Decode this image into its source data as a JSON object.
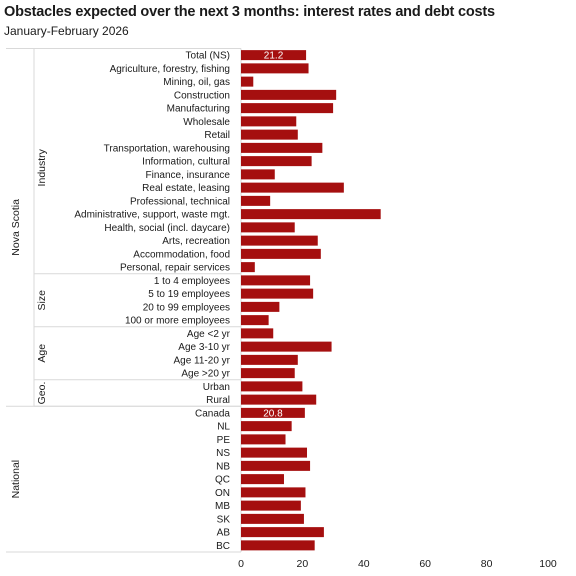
{
  "chart_data": {
    "type": "bar",
    "orientation": "horizontal",
    "title": "Obstacles expected over the next 3 months: interest rates and debt costs",
    "subtitle": "January-February  2026",
    "xlim": [
      0,
      100
    ],
    "xticks": [
      0,
      20,
      40,
      60,
      80,
      100
    ],
    "bar_color": "#a50f0f",
    "grid": false,
    "legend": "none",
    "categories": [
      "Total (NS)",
      "Agriculture, forestry, fishing",
      "Mining, oil, gas",
      "Construction",
      "Manufacturing",
      "Wholesale",
      "Retail",
      "Transportation, warehousing",
      "Information, cultural",
      "Finance, insurance",
      "Real estate, leasing",
      "Professional, technical",
      "Administrative, support, waste mgt.",
      "Health, social (incl. daycare)",
      "Arts, recreation",
      "Accommodation, food",
      "Personal, repair services",
      "1 to 4 employees",
      "5 to 19 employees",
      "20 to 99 employees",
      "100 or more employees",
      "Age <2 yr",
      "Age 3-10 yr",
      "Age 11-20 yr",
      "Age >20 yr",
      "Urban",
      "Rural",
      "Canada",
      "NL",
      "PE",
      "NS",
      "NB",
      "QC",
      "ON",
      "MB",
      "SK",
      "AB",
      "BC"
    ],
    "values": [
      21.2,
      22,
      4,
      31,
      30,
      18,
      18.5,
      26.5,
      23,
      11,
      33.5,
      9.5,
      45.5,
      17.5,
      25,
      26,
      4.5,
      22.5,
      23.5,
      12.5,
      9,
      10.5,
      29.5,
      18.5,
      17.5,
      20,
      24.5,
      20.8,
      16.5,
      14.5,
      21.5,
      22.5,
      14,
      21,
      19.5,
      20.5,
      27,
      24
    ],
    "data_labels": [
      {
        "category": "Total (NS)",
        "text": "21.2"
      },
      {
        "category": "Canada",
        "text": "20.8"
      }
    ],
    "outer_groups": [
      {
        "label": "Nova Scotia",
        "from": 0,
        "to": 26
      },
      {
        "label": "National",
        "from": 27,
        "to": 37
      }
    ],
    "inner_groups": [
      {
        "label": "Industry",
        "from": 1,
        "to": 16
      },
      {
        "label": "Size",
        "from": 17,
        "to": 20
      },
      {
        "label": "Age",
        "from": 21,
        "to": 24
      },
      {
        "label": "Geo.",
        "from": 25,
        "to": 26
      }
    ]
  }
}
